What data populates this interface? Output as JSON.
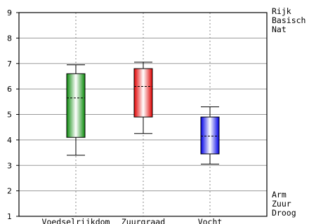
{
  "chart_data": {
    "type": "box",
    "categories": [
      "Voedselrijkdom",
      "Zuurgraad",
      "Vocht"
    ],
    "boxes": [
      {
        "category": "Voedselrijkdom",
        "whisker_low": 3.4,
        "q1": 4.1,
        "median": 5.65,
        "q3": 6.6,
        "whisker_high": 6.95,
        "color": "#0a8a0a"
      },
      {
        "category": "Zuurgraad",
        "whisker_low": 4.25,
        "q1": 4.9,
        "median": 6.1,
        "q3": 6.8,
        "whisker_high": 7.05,
        "color": "#e00000"
      },
      {
        "category": "Vocht",
        "whisker_low": 3.05,
        "q1": 3.45,
        "median": 4.15,
        "q3": 4.9,
        "whisker_high": 5.3,
        "color": "#0000e6"
      }
    ],
    "yticks": [
      "1",
      "2",
      "3",
      "4",
      "5",
      "6",
      "7",
      "8",
      "9"
    ],
    "ylim": [
      1,
      9
    ],
    "right_labels_top": [
      "Rijk",
      "Basisch",
      "Nat"
    ],
    "right_labels_bottom": [
      "Arm",
      "Zuur",
      "Droog"
    ],
    "grid": true,
    "title": "",
    "xlabel": "",
    "ylabel": ""
  }
}
